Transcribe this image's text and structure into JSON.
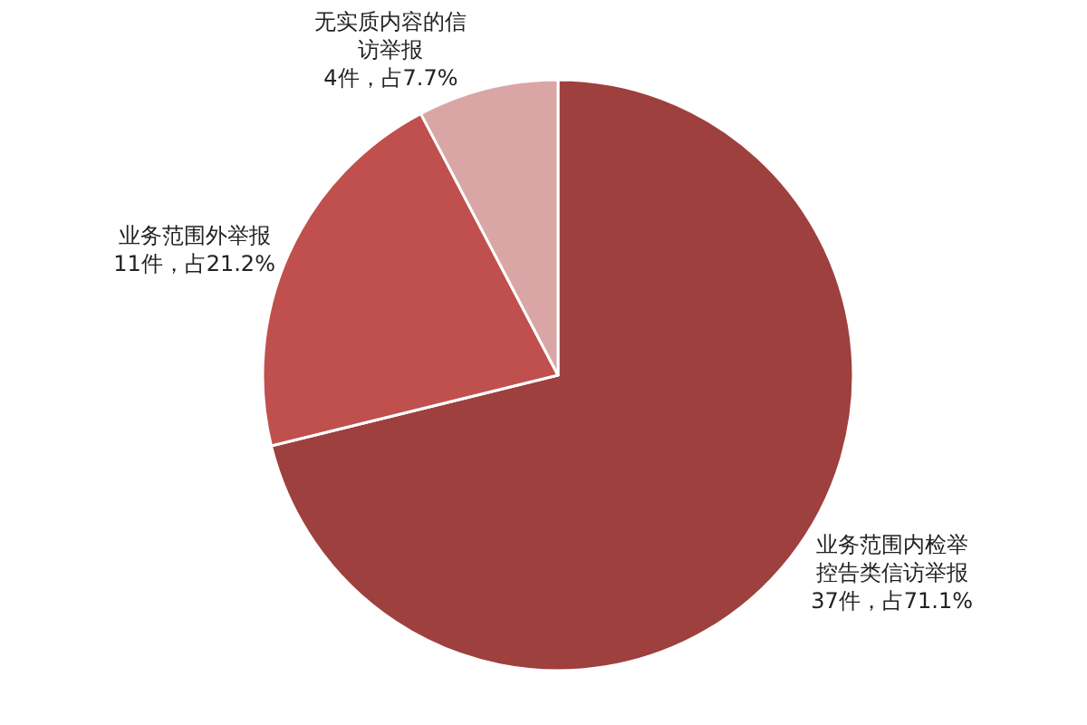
{
  "chart_data": {
    "type": "pie",
    "categories": [
      "业务范围内检举控告类信访举报",
      "业务范围外举报",
      "无实质内容的信访举报"
    ],
    "values": [
      37,
      11,
      4
    ],
    "value_labels": [
      "37件，占71.1%",
      "11件，占21.2%",
      "4件，占7.7%"
    ],
    "colors": [
      "#9e403e",
      "#c0504d",
      "#d9a6a5"
    ],
    "legend": false
  }
}
